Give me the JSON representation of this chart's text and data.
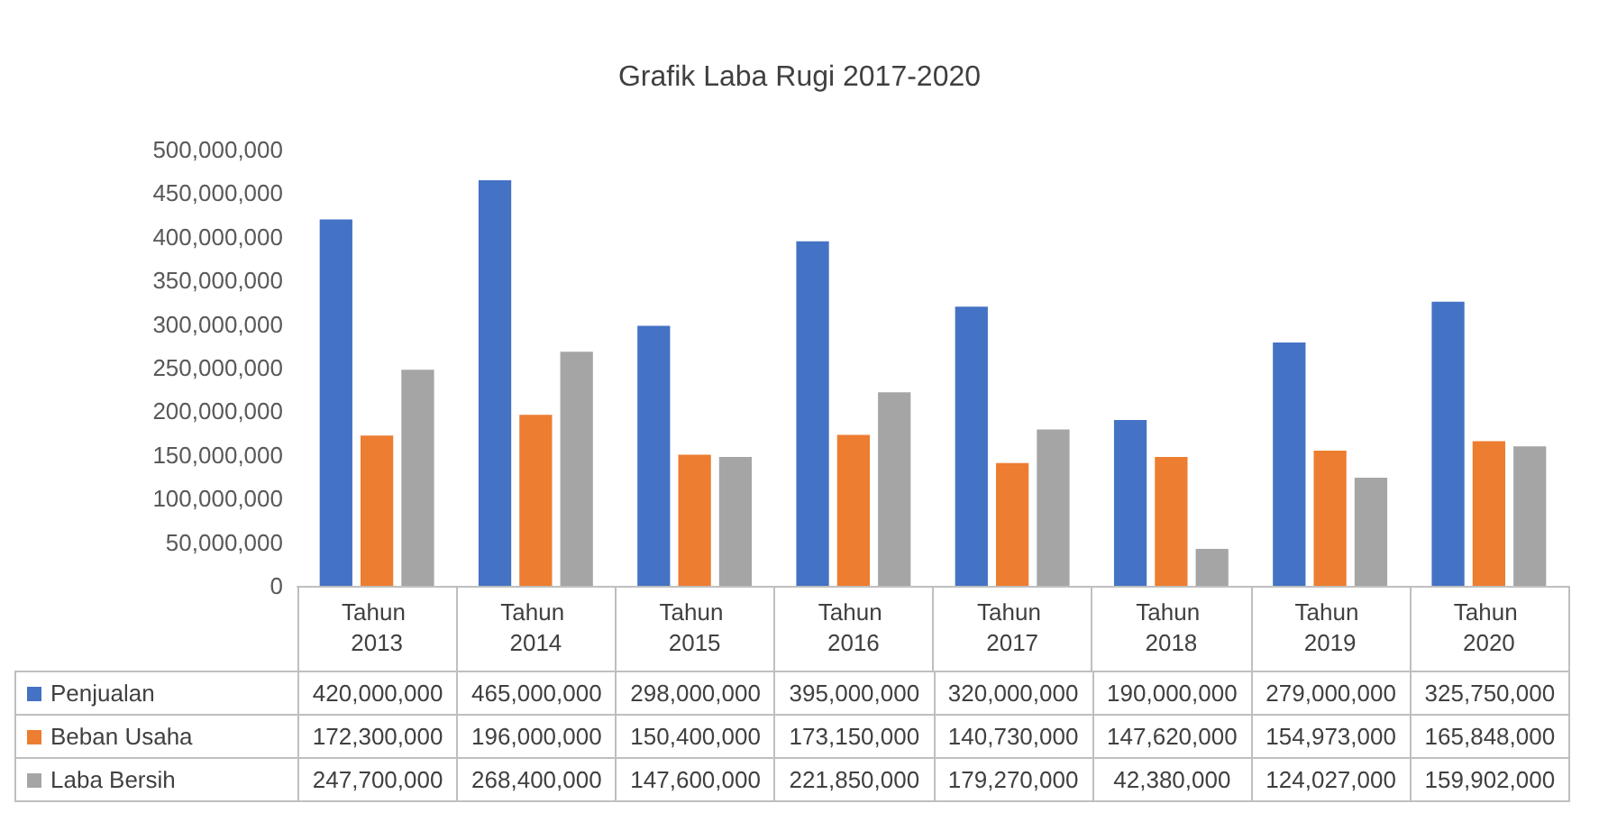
{
  "chart_data": {
    "type": "bar",
    "title": "Grafik Laba Rugi 2017-2020",
    "categories": [
      "Tahun 2013",
      "Tahun 2014",
      "Tahun 2015",
      "Tahun 2016",
      "Tahun 2017",
      "Tahun 2018",
      "Tahun 2019",
      "Tahun 2020"
    ],
    "series": [
      {
        "name": "Penjualan",
        "color": "#4472c4",
        "values": [
          420000000,
          465000000,
          298000000,
          395000000,
          320000000,
          190000000,
          279000000,
          325750000
        ],
        "value_labels": [
          "420,000,000",
          "465,000,000",
          "298,000,000",
          "395,000,000",
          "320,000,000",
          "190,000,000",
          "279,000,000",
          "325,750,000"
        ]
      },
      {
        "name": "Beban Usaha",
        "color": "#ed7d31",
        "values": [
          172300000,
          196000000,
          150400000,
          173150000,
          140730000,
          147620000,
          154973000,
          165848000
        ],
        "value_labels": [
          "172,300,000",
          "196,000,000",
          "150,400,000",
          "173,150,000",
          "140,730,000",
          "147,620,000",
          "154,973,000",
          "165,848,000"
        ]
      },
      {
        "name": "Laba Bersih",
        "color": "#a5a5a5",
        "values": [
          247700000,
          268400000,
          147600000,
          221850000,
          179270000,
          42380000,
          124027000,
          159902000
        ],
        "value_labels": [
          "247,700,000",
          "268,400,000",
          "147,600,000",
          "221,850,000",
          "179,270,000",
          "42,380,000",
          "124,027,000",
          "159,902,000"
        ]
      }
    ],
    "ylim": [
      0,
      500000000
    ],
    "yticks": [
      0,
      {
        "value": 50000000,
        "label": "50,000,000"
      },
      {
        "value": 100000000,
        "label": "100,000,000"
      },
      {
        "value": 150000000,
        "label": "150,000,000"
      },
      {
        "value": 200000000,
        "label": "200,000,000"
      },
      {
        "value": 250000000,
        "label": "250,000,000"
      },
      {
        "value": 300000000,
        "label": "300,000,000"
      },
      {
        "value": 350000000,
        "label": "350,000,000"
      },
      {
        "value": 400000000,
        "label": "400,000,000"
      },
      {
        "value": 450000000,
        "label": "450,000,000"
      },
      {
        "value": 500000000,
        "label": "500,000,000"
      }
    ],
    "grid": false,
    "legend": "bottom left"
  }
}
